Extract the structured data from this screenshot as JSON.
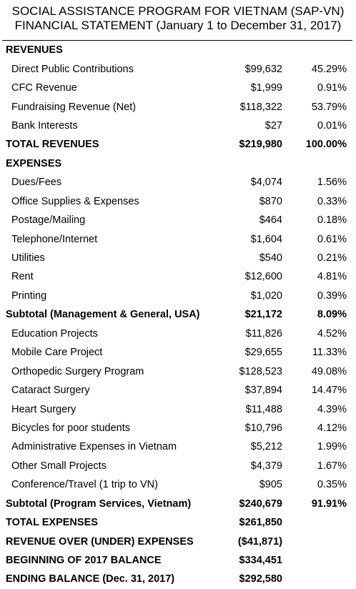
{
  "title": {
    "line1": "SOCIAL ASSISTANCE PROGRAM FOR VIETNAM (SAP-VN)",
    "line2": "FINANCIAL STATEMENT (January 1 to December 31, 2017)"
  },
  "rows": [
    {
      "label": "REVENUES",
      "amount": "",
      "percent": "",
      "style": "header"
    },
    {
      "label": "Direct Public Contributions",
      "amount": "$99,632",
      "percent": "45.29%",
      "style": "item"
    },
    {
      "label": "CFC Revenue",
      "amount": "$1,999",
      "percent": "0.91%",
      "style": "item"
    },
    {
      "label": "Fundraising Revenue (Net)",
      "amount": "$118,322",
      "percent": "53.79%",
      "style": "item"
    },
    {
      "label": "Bank Interests",
      "amount": "$27",
      "percent": "0.01%",
      "style": "item"
    },
    {
      "label": "TOTAL REVENUES",
      "amount": "$219,980",
      "percent": "100.00%",
      "style": "bold"
    },
    {
      "label": "EXPENSES",
      "amount": "",
      "percent": "",
      "style": "header"
    },
    {
      "label": "Dues/Fees",
      "amount": "$4,074",
      "percent": "1.56%",
      "style": "item"
    },
    {
      "label": "Office Supplies & Expenses",
      "amount": "$870",
      "percent": "0.33%",
      "style": "item"
    },
    {
      "label": "Postage/Mailing",
      "amount": "$464",
      "percent": "0.18%",
      "style": "item"
    },
    {
      "label": "Telephone/Internet",
      "amount": "$1,604",
      "percent": "0.61%",
      "style": "item"
    },
    {
      "label": "Utilities",
      "amount": "$540",
      "percent": "0.21%",
      "style": "item"
    },
    {
      "label": "Rent",
      "amount": "$12,600",
      "percent": "4.81%",
      "style": "item"
    },
    {
      "label": "Printing",
      "amount": "$1,020",
      "percent": "0.39%",
      "style": "item"
    },
    {
      "label": "Subtotal (Management & General, USA)",
      "amount": "$21,172",
      "percent": "8.09%",
      "style": "bold"
    },
    {
      "label": "Education Projects",
      "amount": "$11,826",
      "percent": "4.52%",
      "style": "item"
    },
    {
      "label": "Mobile Care Project",
      "amount": "$29,655",
      "percent": "11.33%",
      "style": "item"
    },
    {
      "label": "Orthopedic Surgery Program",
      "amount": "$128,523",
      "percent": "49.08%",
      "style": "item"
    },
    {
      "label": "Cataract Surgery",
      "amount": "$37,894",
      "percent": "14.47%",
      "style": "item"
    },
    {
      "label": "Heart Surgery",
      "amount": "$11,488",
      "percent": "4.39%",
      "style": "item"
    },
    {
      "label": "Bicycles for poor students",
      "amount": "$10,796",
      "percent": "4.12%",
      "style": "item"
    },
    {
      "label": "Administrative Expenses in Vietnam",
      "amount": "$5,212",
      "percent": "1.99%",
      "style": "item"
    },
    {
      "label": "Other Small Projects",
      "amount": "$4,379",
      "percent": "1.67%",
      "style": "item"
    },
    {
      "label": "Conference/Travel (1 trip to VN)",
      "amount": "$905",
      "percent": "0.35%",
      "style": "item"
    },
    {
      "label": "Subtotal (Program Services, Vietnam)",
      "amount": "$240,679",
      "percent": "91.91%",
      "style": "bold"
    },
    {
      "label": "TOTAL EXPENSES",
      "amount": "$261,850",
      "percent": "",
      "style": "bold"
    },
    {
      "label": "REVENUE OVER (UNDER) EXPENSES",
      "amount": "($41,871)",
      "percent": "",
      "style": "bold"
    },
    {
      "label": "BEGINNING OF 2017 BALANCE",
      "amount": "$334,451",
      "percent": "",
      "style": "bold"
    },
    {
      "label": "ENDING BALANCE (Dec. 31, 2017)",
      "amount": "$292,580",
      "percent": "",
      "style": "bold"
    }
  ]
}
